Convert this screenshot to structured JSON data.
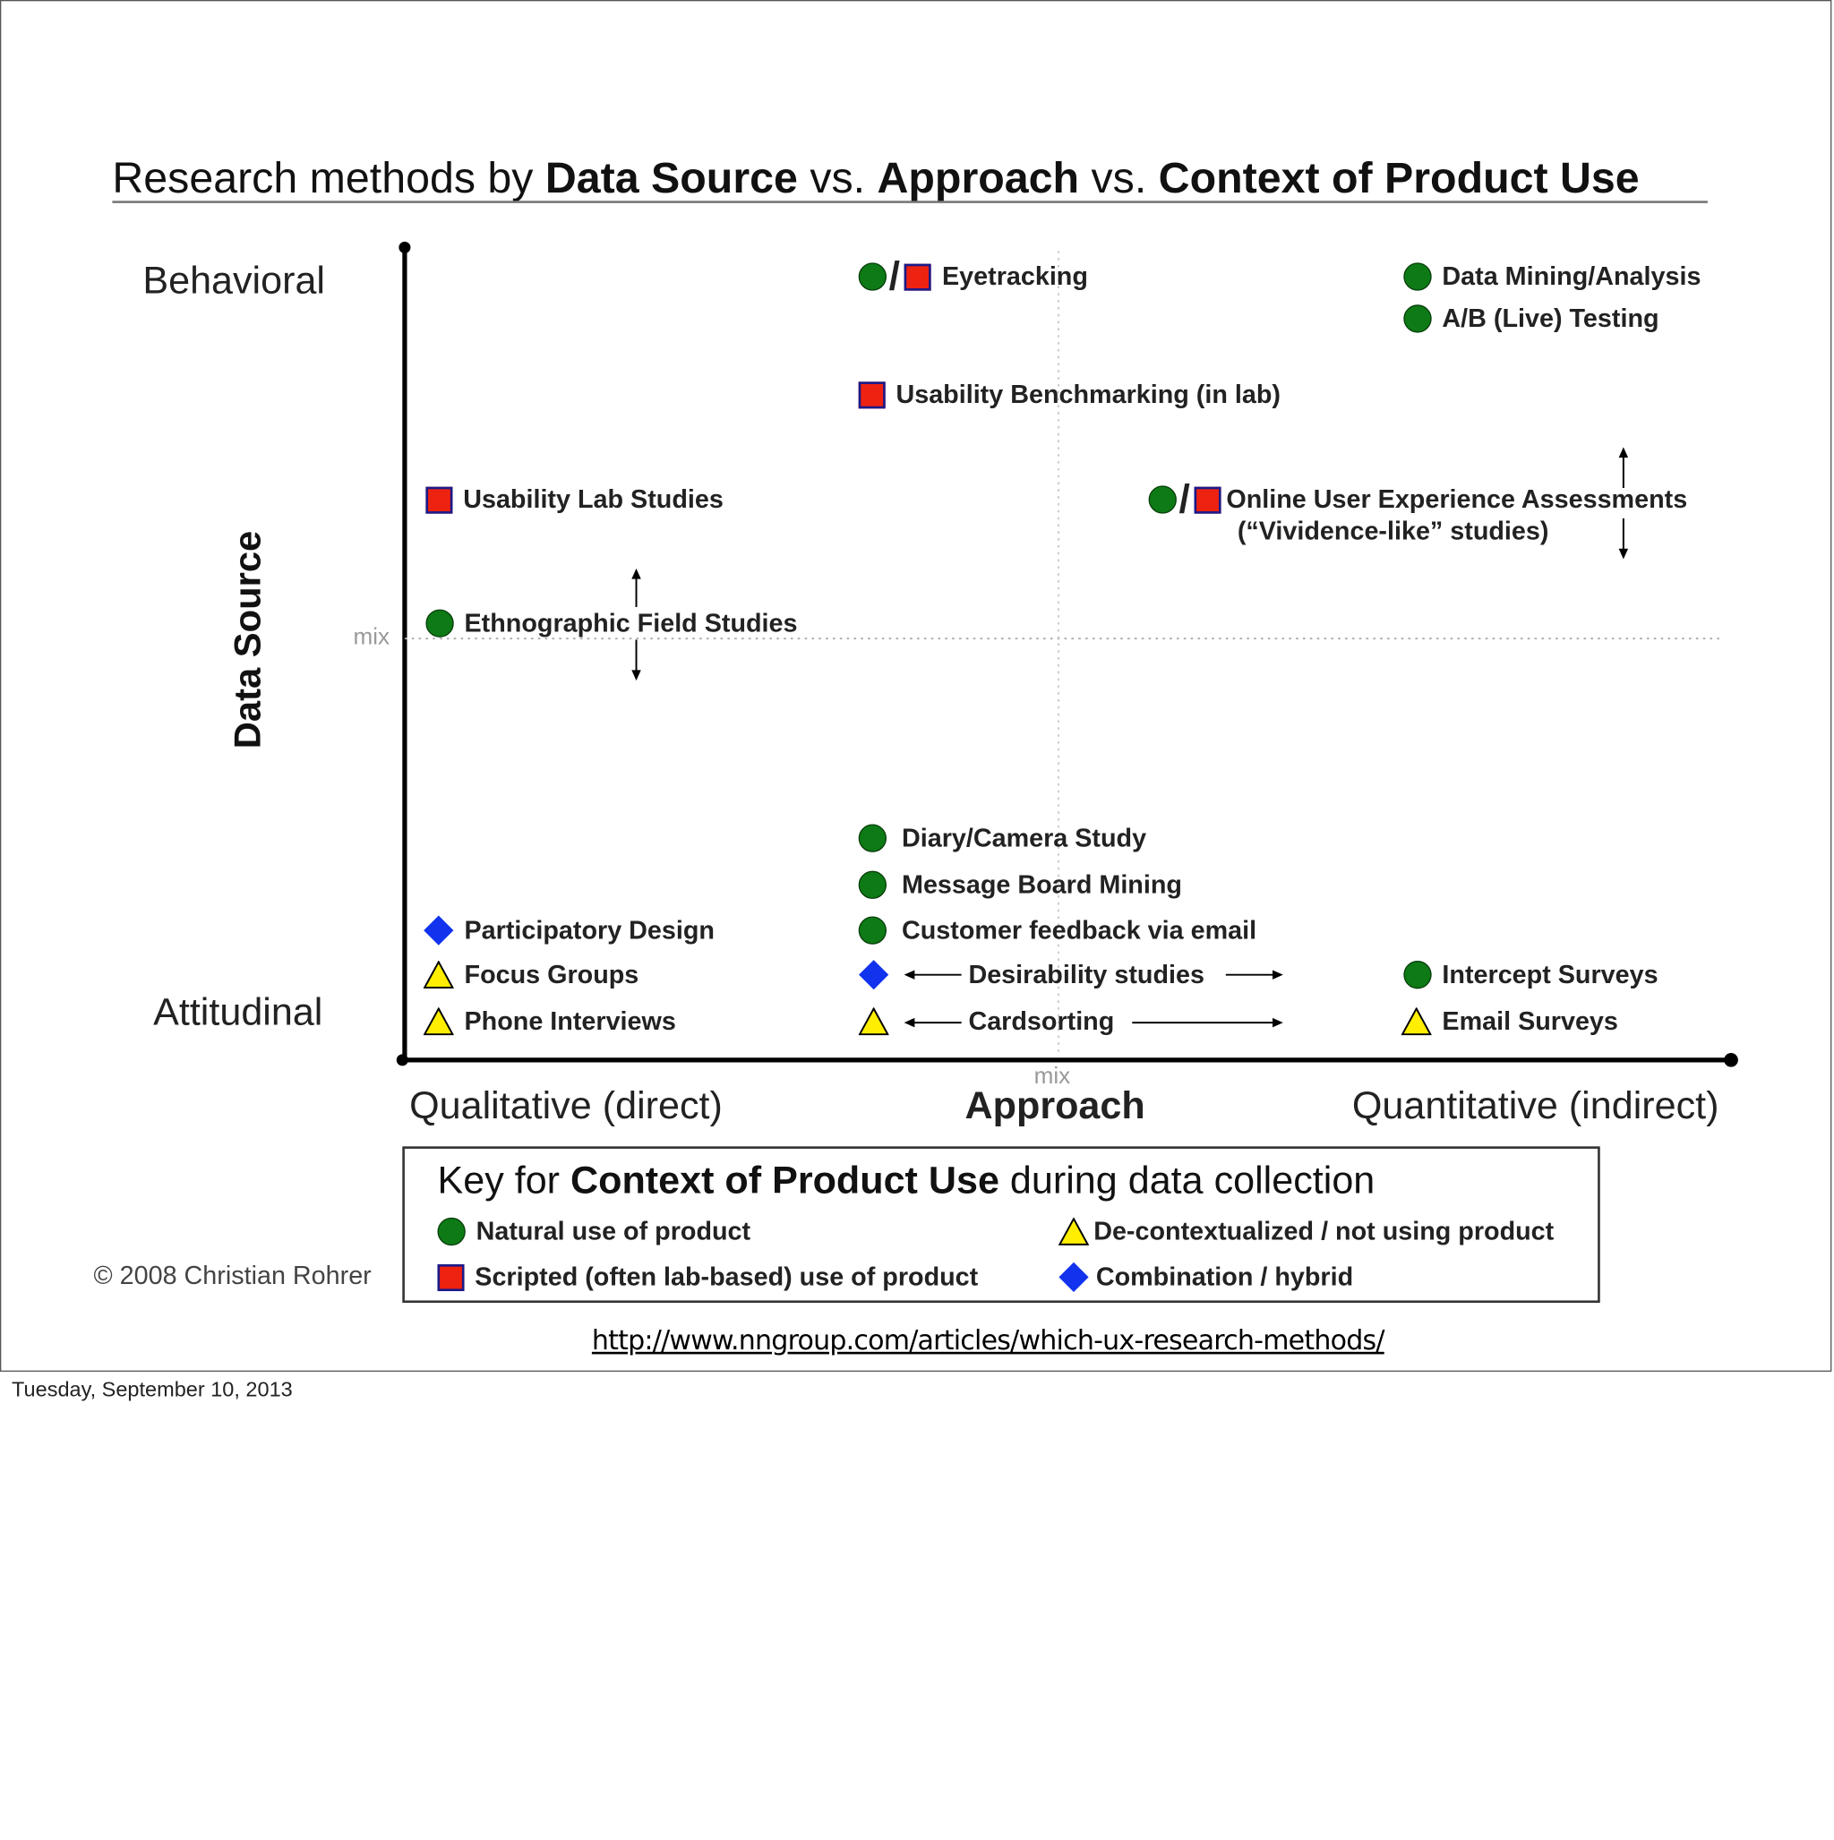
{
  "title": {
    "part1": "Research methods by ",
    "bold1": "Data Source",
    "part2": " vs. ",
    "bold2": "Approach",
    "part3": " vs. ",
    "bold3": "Context of Product Use"
  },
  "axes": {
    "behavioral": "Behavioral",
    "attitudinal": "Attitudinal",
    "data_source": "Data Source",
    "mix_y": "mix",
    "mix_x": "mix",
    "qualitative": "Qualitative (direct)",
    "approach": "Approach",
    "quantitative": "Quantitative (indirect)"
  },
  "methods": {
    "eyetracking": "Eyetracking",
    "data_mining": "Data Mining/Analysis",
    "ab_testing": "A/B (Live) Testing",
    "usability_benchmarking": "Usability Benchmarking (in lab)",
    "usability_lab": "Usability Lab Studies",
    "online_ux_line1": "Online User Experience Assessments",
    "online_ux_line2": "(“Vividence-like” studies)",
    "ethnographic": "Ethnographic Field Studies",
    "diary": "Diary/Camera Study",
    "message_board": "Message Board Mining",
    "customer_feedback": "Customer feedback via email",
    "participatory": "Participatory Design",
    "focus_groups": "Focus Groups",
    "phone_interviews": "Phone Interviews",
    "desirability": "Desirability studies",
    "cardsorting": "Cardsorting",
    "intercept": "Intercept Surveys",
    "email_surveys": "Email Surveys"
  },
  "key": {
    "title_pre": "Key for ",
    "title_bold": "Context of Product Use",
    "title_post": " during data collection",
    "natural": "Natural use of product",
    "scripted": "Scripted (often lab-based) use of product",
    "decontextualized": "De-contextualized / not using product",
    "combination": "Combination / hybrid"
  },
  "copyright": "© 2008 Christian Rohrer",
  "url": "http://www.nngroup.com/articles/which-ux-research-methods/",
  "footer_date": "Tuesday, September 10, 2013",
  "colors": {
    "natural": "#0d7a16",
    "scripted": "#ee2211",
    "decontextualized": "#ffee00",
    "combination": "#1133ee"
  }
}
